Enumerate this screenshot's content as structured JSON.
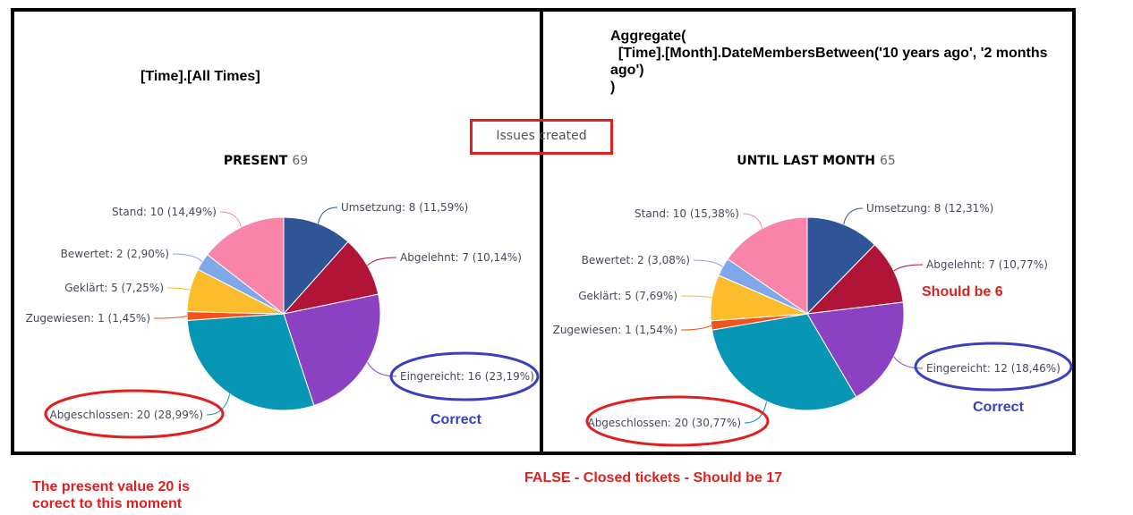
{
  "left_note": "[Time].[All Times]",
  "right_formula": "Aggregate(\n  [Time].[Month].DateMembersBetween('10 years ago', '2 months\nago')\n)",
  "issues_label": "Issues created",
  "annotations": {
    "should_be_6": "Should be 6",
    "correct_left": "Correct",
    "correct_right": "Correct",
    "present_note": "The present value 20 is\ncorect to this moment",
    "false_note": "FALSE - Closed tickets - Should be 17"
  },
  "colors": {
    "Umsetzung": "#2f5597",
    "Abgelehnt": "#b01436",
    "Eingereicht": "#8b42c2",
    "Abgeschlossen": "#0896b5",
    "Zugewiesen": "#f0541e",
    "Geklärt": "#fbbd2b",
    "Bewertet": "#7ea8e8",
    "Stand": "#f884a8",
    "red_annotation": "#e0201f",
    "blue_annotation": "#3a3fbf"
  },
  "chart_data": [
    {
      "type": "pie",
      "title": "PRESENT",
      "total": "69",
      "slices": [
        {
          "name": "Umsetzung",
          "value": 8,
          "label": "Umsetzung: 8 (11,59%)"
        },
        {
          "name": "Abgelehnt",
          "value": 7,
          "label": "Abgelehnt: 7 (10,14%)"
        },
        {
          "name": "Eingereicht",
          "value": 16,
          "label": "Eingereicht: 16 (23,19%)"
        },
        {
          "name": "Abgeschlossen",
          "value": 20,
          "label": "Abgeschlossen: 20 (28,99%)"
        },
        {
          "name": "Zugewiesen",
          "value": 1,
          "label": "Zugewiesen: 1 (1,45%)"
        },
        {
          "name": "Geklärt",
          "value": 5,
          "label": "Geklärt: 5 (7,25%)"
        },
        {
          "name": "Bewertet",
          "value": 2,
          "label": "Bewertet: 2 (2,90%)"
        },
        {
          "name": "Stand",
          "value": 10,
          "label": "Stand: 10 (14,49%)"
        }
      ]
    },
    {
      "type": "pie",
      "title": "UNTIL LAST MONTH",
      "total": "65",
      "slices": [
        {
          "name": "Umsetzung",
          "value": 8,
          "label": "Umsetzung: 8 (12,31%)"
        },
        {
          "name": "Abgelehnt",
          "value": 7,
          "label": "Abgelehnt: 7 (10,77%)"
        },
        {
          "name": "Eingereicht",
          "value": 12,
          "label": "Eingereicht: 12 (18,46%)"
        },
        {
          "name": "Abgeschlossen",
          "value": 20,
          "label": "Abgeschlossen: 20 (30,77%)"
        },
        {
          "name": "Zugewiesen",
          "value": 1,
          "label": "Zugewiesen: 1 (1,54%)"
        },
        {
          "name": "Geklärt",
          "value": 5,
          "label": "Geklärt: 5 (7,69%)"
        },
        {
          "name": "Bewertet",
          "value": 2,
          "label": "Bewertet: 2 (3,08%)"
        },
        {
          "name": "Stand",
          "value": 10,
          "label": "Stand: 10 (15,38%)"
        }
      ]
    }
  ]
}
